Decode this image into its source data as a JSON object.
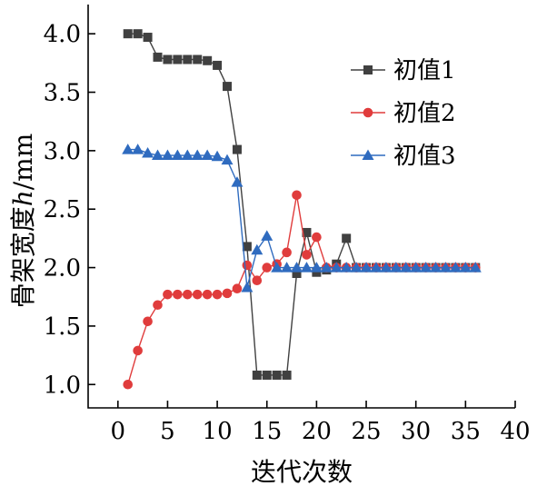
{
  "chart_data": {
    "type": "line",
    "title": "",
    "xlabel": "迭代次数",
    "ylabel": "骨架宽度h/mm",
    "ylabel_prefix": "骨架宽度",
    "ylabel_var": "h",
    "ylabel_unit": "/mm",
    "xlim": [
      -3,
      40
    ],
    "ylim": [
      0.8,
      4.25
    ],
    "xticks": [
      0,
      5,
      10,
      15,
      20,
      25,
      30,
      35,
      40
    ],
    "xtick_labels": [
      "0",
      "5",
      "10",
      "15",
      "20",
      "25",
      "30",
      "35",
      "40"
    ],
    "yticks": [
      1.0,
      1.5,
      2.0,
      2.5,
      3.0,
      3.5,
      4.0
    ],
    "ytick_labels": [
      "1.0",
      "1.5",
      "2.0",
      "2.5",
      "3.0",
      "3.5",
      "4.0"
    ],
    "grid": false,
    "legend_position": "top-right",
    "series": [
      {
        "name": "初值1",
        "color": "#404040",
        "marker": "square",
        "x": [
          1,
          2,
          3,
          4,
          5,
          6,
          7,
          8,
          9,
          10,
          11,
          12,
          13,
          14,
          15,
          16,
          17,
          18,
          19,
          20,
          21,
          22,
          23,
          24,
          25,
          26,
          27,
          28,
          29,
          30,
          31,
          32,
          33,
          34,
          35,
          36
        ],
        "values": [
          4.0,
          4.0,
          3.97,
          3.8,
          3.78,
          3.78,
          3.78,
          3.78,
          3.77,
          3.73,
          3.55,
          3.01,
          2.18,
          1.08,
          1.08,
          1.08,
          1.08,
          1.95,
          2.3,
          1.96,
          1.98,
          2.03,
          2.25,
          2.0,
          2.0,
          2.0,
          2.0,
          2.0,
          2.0,
          2.0,
          2.0,
          2.0,
          2.0,
          2.0,
          2.0,
          2.0
        ]
      },
      {
        "name": "初值2",
        "color": "#e03c3c",
        "marker": "circle",
        "x": [
          1,
          2,
          3,
          4,
          5,
          6,
          7,
          8,
          9,
          10,
          11,
          12,
          13,
          14,
          15,
          16,
          17,
          18,
          19,
          20,
          21,
          22,
          23,
          24,
          25,
          26,
          27,
          28,
          29,
          30,
          31,
          32,
          33,
          34,
          35,
          36
        ],
        "values": [
          1.0,
          1.29,
          1.54,
          1.68,
          1.77,
          1.77,
          1.77,
          1.77,
          1.77,
          1.77,
          1.78,
          1.82,
          2.02,
          1.89,
          2.0,
          2.03,
          2.13,
          2.62,
          2.11,
          2.26,
          2.0,
          2.0,
          2.0,
          2.0,
          2.0,
          2.0,
          2.0,
          2.0,
          2.0,
          2.0,
          2.0,
          2.0,
          2.0,
          2.0,
          2.0,
          2.0
        ]
      },
      {
        "name": "初值3",
        "color": "#2f6bbf",
        "marker": "triangle",
        "x": [
          1,
          2,
          3,
          4,
          5,
          6,
          7,
          8,
          9,
          10,
          11,
          12,
          13,
          14,
          15,
          16,
          17,
          18,
          19,
          20,
          21,
          22,
          23,
          24,
          25,
          26,
          27,
          28,
          29,
          30,
          31,
          32,
          33,
          34,
          35,
          36
        ],
        "values": [
          3.01,
          3.01,
          2.98,
          2.96,
          2.96,
          2.96,
          2.96,
          2.96,
          2.96,
          2.95,
          2.92,
          2.73,
          1.83,
          2.15,
          2.27,
          2.0,
          2.0,
          2.0,
          2.0,
          2.0,
          2.0,
          2.0,
          2.0,
          2.0,
          2.0,
          2.0,
          2.0,
          2.0,
          2.0,
          2.0,
          2.0,
          2.0,
          2.0,
          2.0,
          2.0,
          2.0
        ]
      }
    ]
  }
}
